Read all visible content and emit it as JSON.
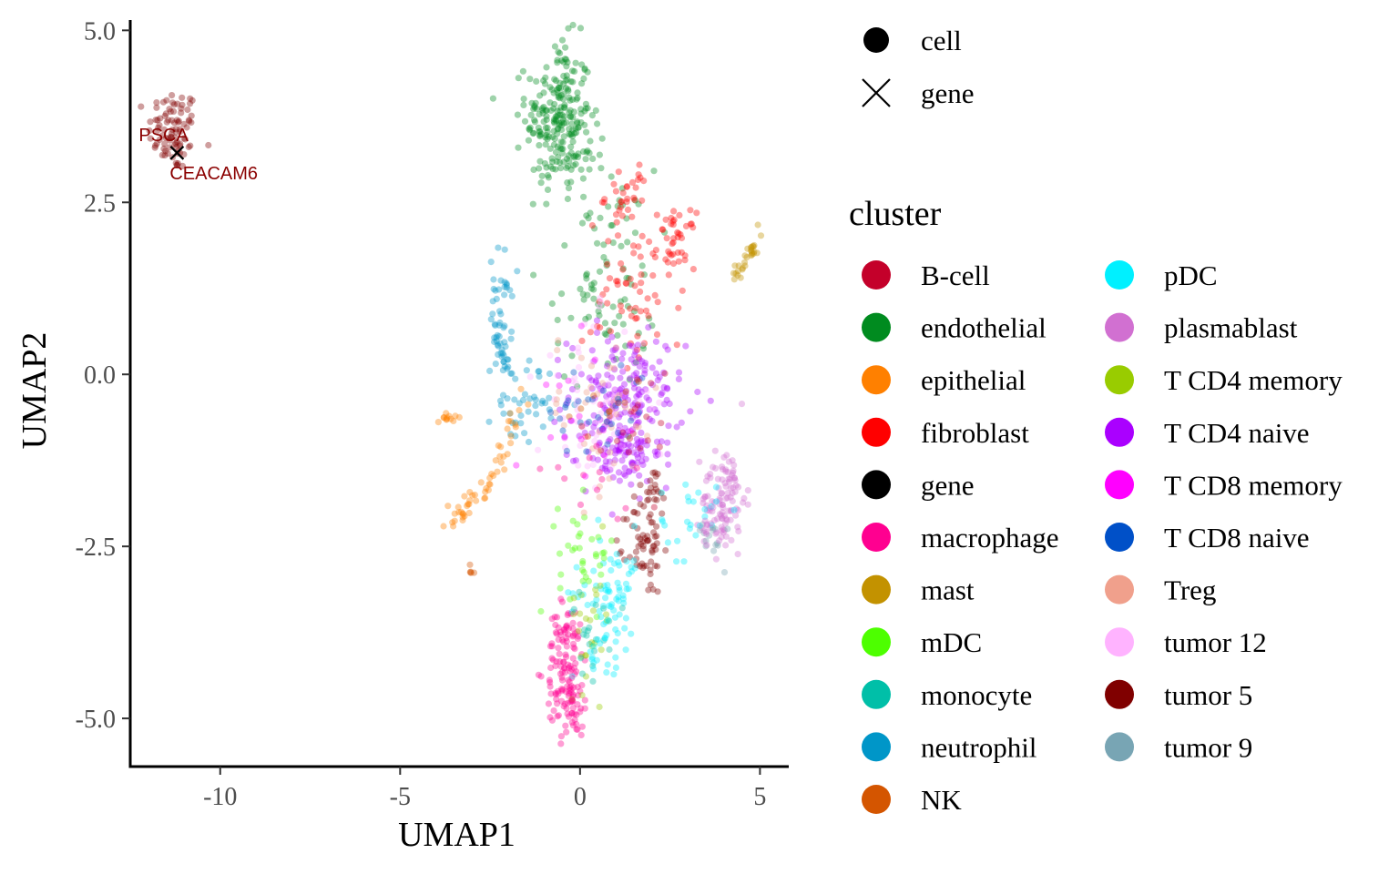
{
  "chart_data": {
    "type": "scatter",
    "xlabel": "UMAP1",
    "ylabel": "UMAP2",
    "xlim": [
      -12.5,
      5.8
    ],
    "ylim": [
      -5.7,
      5.15
    ],
    "x_ticks": [
      -10,
      -5,
      0,
      5
    ],
    "x_tick_labels": [
      "-10",
      "-5",
      "0",
      "5"
    ],
    "y_ticks": [
      5.0,
      2.5,
      0.0,
      -2.5,
      -5.0
    ],
    "y_tick_labels": [
      "5.0",
      "2.5",
      "0.0",
      "-2.5",
      "-5.0"
    ],
    "grid": false,
    "legend_placement": "right",
    "shape_legend": {
      "items": [
        {
          "label": "cell",
          "shape": "circle"
        },
        {
          "label": "gene",
          "shape": "x"
        }
      ]
    },
    "color_legend": {
      "title": "cluster",
      "items": [
        {
          "label": "B-cell",
          "color": "#c4002a"
        },
        {
          "label": "endothelial",
          "color": "#008b1f"
        },
        {
          "label": "epithelial",
          "color": "#ff8000"
        },
        {
          "label": "fibroblast",
          "color": "#ff0000"
        },
        {
          "label": "gene",
          "color": "#000000"
        },
        {
          "label": "macrophage",
          "color": "#ff0090"
        },
        {
          "label": "mast",
          "color": "#c39200"
        },
        {
          "label": "mDC",
          "color": "#4dff00"
        },
        {
          "label": "monocyte",
          "color": "#00bfa8"
        },
        {
          "label": "neutrophil",
          "color": "#0096c8"
        },
        {
          "label": "NK",
          "color": "#d45500"
        },
        {
          "label": "pDC",
          "color": "#00f0ff"
        },
        {
          "label": "plasmablast",
          "color": "#d170d1"
        },
        {
          "label": "T CD4 memory",
          "color": "#99cc00"
        },
        {
          "label": "T CD4 naive",
          "color": "#aa00ff"
        },
        {
          "label": "T CD8 memory",
          "color": "#ff00ff"
        },
        {
          "label": "T CD8 naive",
          "color": "#0050c8"
        },
        {
          "label": "Treg",
          "color": "#f0a08c"
        },
        {
          "label": "tumor 12",
          "color": "#ffb3ff"
        },
        {
          "label": "tumor 5",
          "color": "#800000"
        },
        {
          "label": "tumor 9",
          "color": "#78a5b4"
        }
      ]
    },
    "gene_points": [
      {
        "label": "PSCA",
        "x": -11.2,
        "y": 3.22
      },
      {
        "label": "CEACAM6",
        "x": -11.2,
        "y": 3.22
      }
    ],
    "cell_clusters": [
      {
        "cluster": "tumor 5",
        "cx": -11.3,
        "cy": 3.55,
        "sx": 0.35,
        "sy": 0.3,
        "n": 90
      },
      {
        "cluster": "endothelial",
        "cx": -0.6,
        "cy": 3.75,
        "sx": 0.45,
        "sy": 0.55,
        "n": 220
      },
      {
        "cluster": "endothelial",
        "cx": 0.7,
        "cy": 1.4,
        "sx": 0.7,
        "sy": 0.8,
        "n": 90
      },
      {
        "cluster": "fibroblast",
        "cx": 1.3,
        "cy": 2.6,
        "sx": 0.3,
        "sy": 0.25,
        "n": 30
      },
      {
        "cluster": "fibroblast",
        "cx": 2.7,
        "cy": 1.95,
        "sx": 0.25,
        "sy": 0.2,
        "n": 40
      },
      {
        "cluster": "fibroblast",
        "cx": 1.5,
        "cy": 1.1,
        "sx": 0.7,
        "sy": 0.6,
        "n": 60
      },
      {
        "cluster": "neutrophil",
        "cx": -2.2,
        "cy": 0.9,
        "sx": 0.15,
        "sy": 0.45,
        "n": 40
      },
      {
        "cluster": "neutrophil",
        "cx": -1.5,
        "cy": -0.4,
        "sx": 0.45,
        "sy": 0.3,
        "n": 40
      },
      {
        "cluster": "T CD4 naive",
        "cx": 1.3,
        "cy": -0.3,
        "sx": 0.8,
        "sy": 0.45,
        "n": 170
      },
      {
        "cluster": "T CD4 naive",
        "cx": 1.1,
        "cy": -1.15,
        "sx": 0.6,
        "sy": 0.25,
        "n": 90
      },
      {
        "cluster": "plasmablast",
        "cx": 4.0,
        "cy": -1.8,
        "sx": 0.3,
        "sy": 0.4,
        "n": 90
      },
      {
        "cluster": "tumor 5",
        "cx": 1.8,
        "cy": -2.5,
        "sx": 0.25,
        "sy": 0.35,
        "n": 60
      },
      {
        "cluster": "tumor 5",
        "cx": 2.0,
        "cy": -1.7,
        "sx": 0.25,
        "sy": 0.2,
        "n": 20
      },
      {
        "cluster": "macrophage",
        "cx": -0.35,
        "cy": -4.3,
        "sx": 0.3,
        "sy": 0.5,
        "n": 120
      },
      {
        "cluster": "pDC",
        "cx": 0.8,
        "cy": -3.2,
        "sx": 0.5,
        "sy": 0.5,
        "n": 60
      },
      {
        "cluster": "pDC",
        "cx": 3.0,
        "cy": -2.1,
        "sx": 0.4,
        "sy": 0.3,
        "n": 25
      },
      {
        "cluster": "mDC",
        "cx": 0.2,
        "cy": -2.6,
        "sx": 0.4,
        "sy": 0.4,
        "n": 35
      },
      {
        "cluster": "T CD4 memory",
        "cx": 0.3,
        "cy": -3.5,
        "sx": 0.3,
        "sy": 0.5,
        "n": 25
      },
      {
        "cluster": "monocyte",
        "cx": 0.4,
        "cy": -3.8,
        "sx": 0.4,
        "sy": 0.3,
        "n": 20
      },
      {
        "cluster": "tumor 12",
        "cx": 0.4,
        "cy": -0.4,
        "sx": 0.8,
        "sy": 0.6,
        "n": 60
      },
      {
        "cluster": "Treg",
        "cx": 0.5,
        "cy": -0.6,
        "sx": 0.9,
        "sy": 0.6,
        "n": 40
      },
      {
        "cluster": "T CD8 naive",
        "cx": 0.6,
        "cy": -0.5,
        "sx": 0.7,
        "sy": 0.35,
        "n": 30
      },
      {
        "cluster": "tumor 9",
        "cx": 3.6,
        "cy": -2.3,
        "sx": 0.2,
        "sy": 0.2,
        "n": 15
      },
      {
        "cluster": "B-cell",
        "cx": 1.5,
        "cy": -0.8,
        "sx": 0.6,
        "sy": 0.5,
        "n": 20
      },
      {
        "cluster": "macrophage",
        "cx": 0.2,
        "cy": -1.5,
        "sx": 0.6,
        "sy": 0.4,
        "n": 15
      },
      {
        "cluster": "T CD8 memory",
        "cx": 0.3,
        "cy": -0.4,
        "sx": 0.7,
        "sy": 0.5,
        "n": 15
      },
      {
        "cluster": "epithelial",
        "cx": -3.7,
        "cy": -0.62,
        "sx": 0.12,
        "sy": 0.05,
        "n": 12
      },
      {
        "cluster": "NK",
        "cx": -3.0,
        "cy": -2.85,
        "sx": 0.04,
        "sy": 0.06,
        "n": 5
      },
      {
        "cluster": "NK",
        "cx": 0.6,
        "cy": -0.5,
        "sx": 0.6,
        "sy": 0.3,
        "n": 10
      }
    ],
    "cell_strands": [
      {
        "cluster": "epithelial",
        "x0": -3.6,
        "y0": -2.2,
        "x1": -2.4,
        "y1": -1.5,
        "n": 35,
        "jitter": 0.1
      },
      {
        "cluster": "epithelial",
        "x0": -2.3,
        "y0": -1.4,
        "x1": -1.6,
        "y1": -0.3,
        "n": 20,
        "jitter": 0.12
      },
      {
        "cluster": "mast",
        "x0": 4.3,
        "y0": 1.4,
        "x1": 5.0,
        "y1": 1.95,
        "n": 30,
        "jitter": 0.06
      },
      {
        "cluster": "neutrophil",
        "x0": -2.35,
        "y0": 0.6,
        "x1": -1.9,
        "y1": -0.15,
        "n": 20,
        "jitter": 0.05
      },
      {
        "cluster": "endothelial",
        "x0": -0.7,
        "y0": 3.2,
        "x1": 0.8,
        "y1": 3.1,
        "n": 25,
        "jitter": 0.12
      },
      {
        "cluster": "macrophage",
        "x0": -0.05,
        "y0": -5.15,
        "x1": -0.6,
        "y1": -3.6,
        "n": 30,
        "jitter": 0.08
      },
      {
        "cluster": "pDC",
        "x0": 0.3,
        "y0": -4.2,
        "x1": 1.5,
        "y1": -2.7,
        "n": 25,
        "jitter": 0.1
      },
      {
        "cluster": "plasmablast",
        "x0": 3.4,
        "y0": -2.4,
        "x1": 4.5,
        "y1": -1.4,
        "n": 25,
        "jitter": 0.1
      }
    ]
  }
}
